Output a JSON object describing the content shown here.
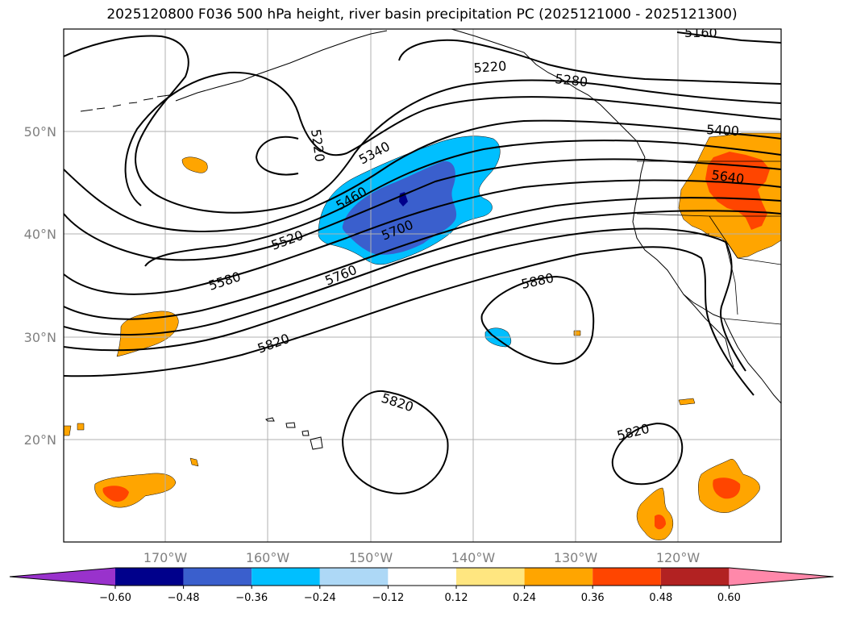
{
  "title": "2025120800 F036 500 hPa height, river basin precipitation PC (2025121000 - 2025121300)",
  "lon_labels": [
    "170°W",
    "160°W",
    "150°W",
    "140°W",
    "130°W",
    "120°W"
  ],
  "lat_labels": [
    "50°N",
    "40°N",
    "30°N",
    "20°N"
  ],
  "contour_labels": [
    "5160",
    "5220",
    "5280",
    "5220",
    "5340",
    "5400",
    "5460",
    "5520",
    "5580",
    "5640",
    "5700",
    "5760",
    "5820",
    "5880",
    "5820",
    "5820"
  ],
  "colorbar": {
    "ticks": [
      "−0.60",
      "−0.48",
      "−0.36",
      "−0.24",
      "−0.12",
      "0.12",
      "0.24",
      "0.36",
      "0.48",
      "0.60"
    ],
    "colors": [
      "#9932cc",
      "#00008b",
      "#3a5fcd",
      "#00bfff",
      "#add8f6",
      "#ffffff",
      "#ffe680",
      "#ffa500",
      "#ff4500",
      "#b22222",
      "#ff88aa"
    ]
  },
  "colors": {
    "positive_light": "#ffa500",
    "positive_strong": "#ff4500",
    "negative_light": "#00bfff",
    "negative_strong": "#3a5fcd",
    "negative_extreme": "#00008b",
    "contour": "#000000",
    "tick_label": "#808080"
  }
}
